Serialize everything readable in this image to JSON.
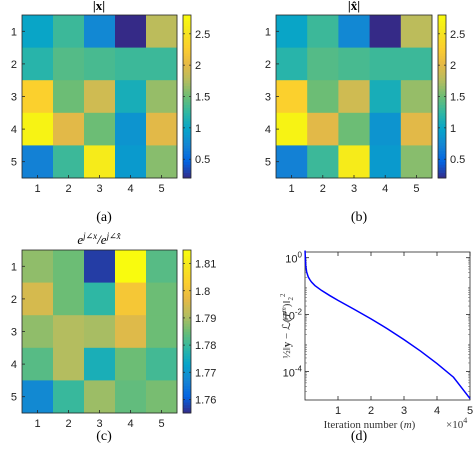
{
  "chart_data": [
    {
      "type": "heatmap",
      "title": "|x|",
      "caption": "(a)",
      "x": [
        "1",
        "2",
        "3",
        "4",
        "5"
      ],
      "y": [
        "1",
        "2",
        "3",
        "4",
        "5"
      ],
      "values": [
        [
          1.0,
          1.3,
          0.75,
          0.2,
          1.8
        ],
        [
          1.2,
          1.4,
          1.35,
          1.3,
          1.3
        ],
        [
          2.3,
          1.5,
          1.9,
          1.1,
          1.65
        ],
        [
          2.7,
          2.0,
          1.5,
          0.85,
          2.0
        ],
        [
          0.7,
          1.3,
          2.6,
          0.9,
          1.6
        ]
      ],
      "zlim": [
        0.2,
        2.8
      ],
      "colorbar_ticks": [
        "0.5",
        "1",
        "1.5",
        "2",
        "2.5"
      ],
      "colormap": "parula"
    },
    {
      "type": "heatmap",
      "title": "|x̂|",
      "caption": "(b)",
      "x": [
        "1",
        "2",
        "3",
        "4",
        "5"
      ],
      "y": [
        "1",
        "2",
        "3",
        "4",
        "5"
      ],
      "values": [
        [
          1.0,
          1.3,
          0.75,
          0.2,
          1.8
        ],
        [
          1.2,
          1.4,
          1.35,
          1.3,
          1.3
        ],
        [
          2.3,
          1.5,
          1.9,
          1.1,
          1.65
        ],
        [
          2.7,
          2.0,
          1.5,
          0.85,
          2.0
        ],
        [
          0.7,
          1.3,
          2.6,
          0.9,
          1.6
        ]
      ],
      "zlim": [
        0.2,
        2.8
      ],
      "colorbar_ticks": [
        "0.5",
        "1",
        "1.5",
        "2",
        "2.5"
      ],
      "colormap": "parula"
    },
    {
      "type": "heatmap",
      "title": "e^{j∠x}/e^{j∠x̂}",
      "caption": "(c)",
      "x": [
        "1",
        "2",
        "3",
        "4",
        "5"
      ],
      "y": [
        "1",
        "2",
        "3",
        "4",
        "5"
      ],
      "values": [
        [
          1.788,
          1.785,
          1.757,
          1.815,
          1.783
        ],
        [
          1.795,
          1.785,
          1.779,
          1.801,
          1.785
        ],
        [
          1.788,
          1.791,
          1.79,
          1.796,
          1.785
        ],
        [
          1.783,
          1.791,
          1.776,
          1.785,
          1.781
        ],
        [
          1.768,
          1.78,
          1.789,
          1.784,
          1.786
        ]
      ],
      "zlim": [
        1.755,
        1.815
      ],
      "colorbar_ticks": [
        "1.76",
        "1.77",
        "1.78",
        "1.79",
        "1.8",
        "1.81"
      ],
      "colormap": "parula"
    },
    {
      "type": "line",
      "caption": "(d)",
      "xlabel": "Iteration number (m)",
      "x_multiplier": "×10^4",
      "ylabel": "½‖y − ℒ(T^m)‖₂²",
      "xlim": [
        0,
        5
      ],
      "ylim_log10": [
        -5,
        0.2
      ],
      "yscale": "log",
      "x_ticks": [
        "1",
        "2",
        "3",
        "4",
        "5"
      ],
      "y_ticks": [
        "10^0",
        "10^-2",
        "10^-4"
      ],
      "series": [
        {
          "color": "#0000ff",
          "x": [
            0.001,
            0.02,
            0.05,
            0.1,
            0.15,
            0.2,
            0.3,
            0.5,
            0.75,
            1.0,
            1.5,
            2.0,
            2.5,
            3.0,
            3.5,
            4.0,
            4.5,
            5.0
          ],
          "log10_y": [
            0.25,
            -0.25,
            -0.5,
            -0.68,
            -0.78,
            -0.86,
            -0.98,
            -1.15,
            -1.33,
            -1.5,
            -1.82,
            -2.15,
            -2.5,
            -2.88,
            -3.28,
            -3.72,
            -4.2,
            -4.95
          ]
        }
      ]
    }
  ]
}
